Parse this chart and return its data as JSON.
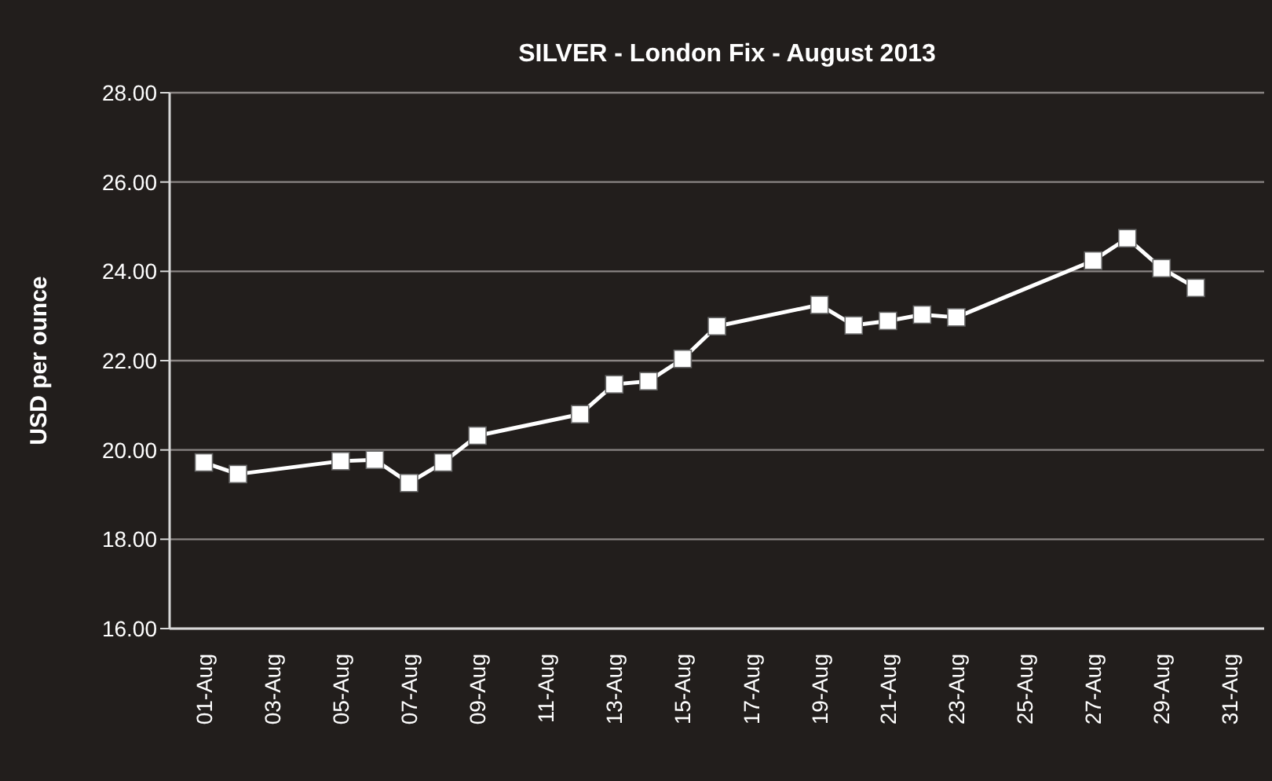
{
  "chart_data": {
    "type": "line",
    "title": "SILVER - London Fix - August 2013",
    "ylabel": "USD per ounce",
    "x": [
      "2013-08-01",
      "2013-08-02",
      "2013-08-05",
      "2013-08-06",
      "2013-08-07",
      "2013-08-08",
      "2013-08-09",
      "2013-08-12",
      "2013-08-13",
      "2013-08-14",
      "2013-08-15",
      "2013-08-16",
      "2013-08-19",
      "2013-08-20",
      "2013-08-21",
      "2013-08-22",
      "2013-08-23",
      "2013-08-27",
      "2013-08-28",
      "2013-08-29",
      "2013-08-30"
    ],
    "series": [
      {
        "color": "#ffffff",
        "values": [
          19.72,
          19.46,
          19.75,
          19.78,
          19.26,
          19.72,
          20.32,
          20.8,
          21.47,
          21.54,
          22.04,
          22.77,
          23.25,
          22.79,
          22.89,
          23.03,
          22.97,
          24.24,
          24.74,
          24.07,
          23.63
        ]
      }
    ],
    "xlim": [
      "2013-07-31",
      "2013-09-01"
    ],
    "xticks": [
      {
        "value": "2013-08-01",
        "label": "01-Aug"
      },
      {
        "value": "2013-08-03",
        "label": "03-Aug"
      },
      {
        "value": "2013-08-05",
        "label": "05-Aug"
      },
      {
        "value": "2013-08-07",
        "label": "07-Aug"
      },
      {
        "value": "2013-08-09",
        "label": "09-Aug"
      },
      {
        "value": "2013-08-11",
        "label": "11-Aug"
      },
      {
        "value": "2013-08-13",
        "label": "13-Aug"
      },
      {
        "value": "2013-08-15",
        "label": "15-Aug"
      },
      {
        "value": "2013-08-17",
        "label": "17-Aug"
      },
      {
        "value": "2013-08-19",
        "label": "19-Aug"
      },
      {
        "value": "2013-08-21",
        "label": "21-Aug"
      },
      {
        "value": "2013-08-23",
        "label": "23-Aug"
      },
      {
        "value": "2013-08-25",
        "label": "25-Aug"
      },
      {
        "value": "2013-08-27",
        "label": "27-Aug"
      },
      {
        "value": "2013-08-29",
        "label": "29-Aug"
      },
      {
        "value": "2013-08-31",
        "label": "31-Aug"
      }
    ],
    "ylim": [
      16,
      28
    ],
    "yticks": [
      {
        "value": 16,
        "label": "16.00"
      },
      {
        "value": 18,
        "label": "18.00"
      },
      {
        "value": 20,
        "label": "20.00"
      },
      {
        "value": 22,
        "label": "22.00"
      },
      {
        "value": 24,
        "label": "24.00"
      },
      {
        "value": 26,
        "label": "26.00"
      },
      {
        "value": 28,
        "label": "28.00"
      }
    ],
    "grid": "y",
    "marker": "square",
    "line_style": "solid",
    "legend": false
  }
}
